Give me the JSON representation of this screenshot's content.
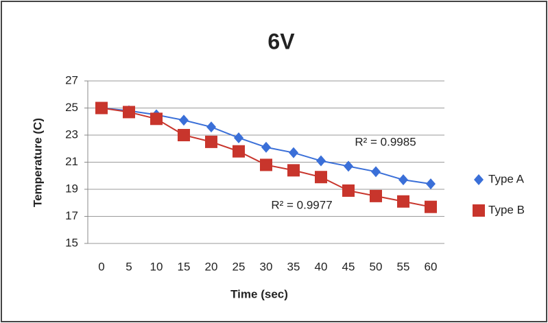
{
  "chart_data": {
    "type": "line",
    "title": "6V",
    "x_label": "Time (sec)",
    "y_label": "Temperature (C)",
    "categories": [
      "0",
      "5",
      "10",
      "15",
      "20",
      "25",
      "30",
      "35",
      "40",
      "45",
      "50",
      "55",
      "60"
    ],
    "series": [
      {
        "name": "Type A",
        "color": "#3a6fd8",
        "marker": "diamond",
        "values": [
          25,
          24.8,
          24.5,
          24.1,
          23.6,
          22.8,
          22.1,
          21.7,
          21.1,
          20.7,
          20.3,
          19.7,
          19.4
        ]
      },
      {
        "name": "Type B",
        "color": "#c8352c",
        "marker": "square",
        "values": [
          25,
          24.7,
          24.2,
          23.0,
          22.5,
          21.8,
          20.8,
          20.4,
          19.9,
          18.9,
          18.5,
          18.1,
          17.7
        ]
      }
    ],
    "annotations": [
      "R² = 0.9985",
      "R² = 0.9977"
    ],
    "ylim": [
      15,
      27
    ],
    "yticks": [
      15,
      17,
      19,
      21,
      23,
      25,
      27
    ],
    "grid": true,
    "legend": "right"
  }
}
